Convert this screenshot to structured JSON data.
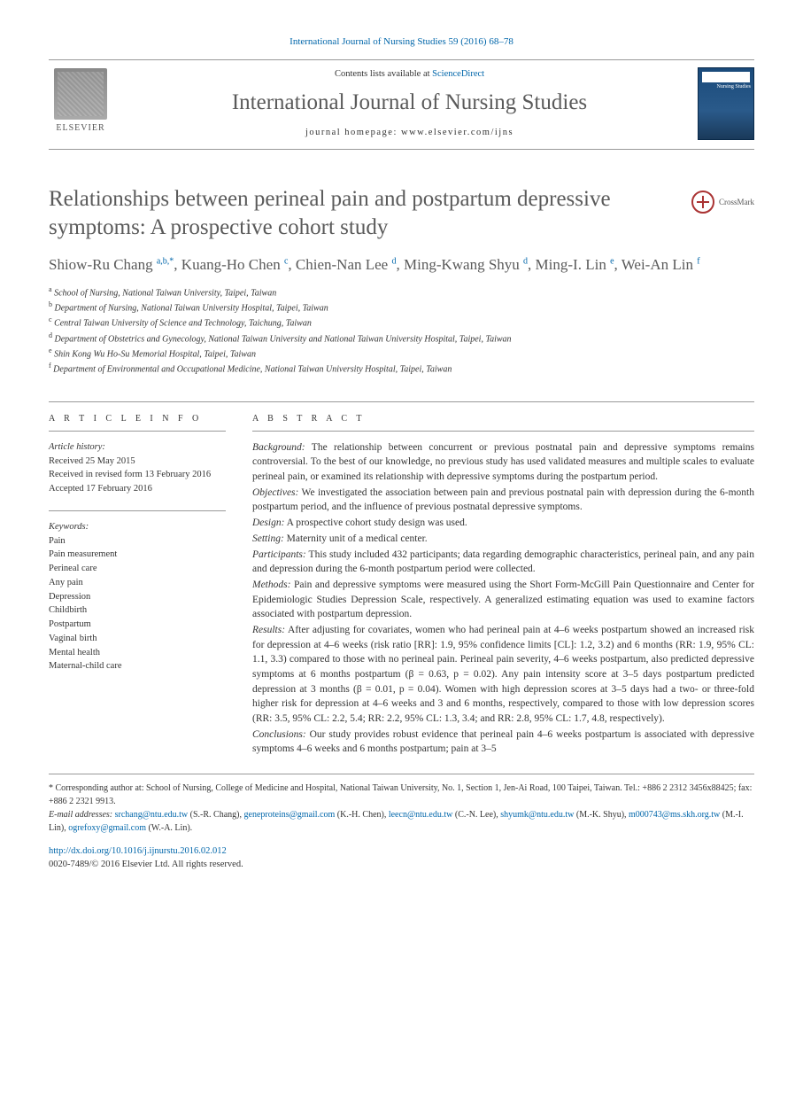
{
  "header": {
    "citation": "International Journal of Nursing Studies 59 (2016) 68–78",
    "contents_prefix": "Contents lists available at ",
    "contents_link": "ScienceDirect",
    "journal_name": "International Journal of Nursing Studies",
    "homepage_prefix": "journal homepage: ",
    "homepage_url": "www.elsevier.com/ijns",
    "publisher": "ELSEVIER",
    "cover_label": "Nursing Studies"
  },
  "crossmark": {
    "label": "CrossMark"
  },
  "article": {
    "title": "Relationships between perineal pain and postpartum depressive symptoms: A prospective cohort study",
    "authors_html": "Shiow-Ru Chang <sup>a,b,*</sup>, Kuang-Ho Chen <sup>c</sup>, Chien-Nan Lee <sup>d</sup>, Ming-Kwang Shyu <sup>d</sup>, Ming-I. Lin <sup>e</sup>, Wei-An Lin <sup>f</sup>"
  },
  "affiliations": [
    "School of Nursing, National Taiwan University, Taipei, Taiwan",
    "Department of Nursing, National Taiwan University Hospital, Taipei, Taiwan",
    "Central Taiwan University of Science and Technology, Taichung, Taiwan",
    "Department of Obstetrics and Gynecology, National Taiwan University and National Taiwan University Hospital, Taipei, Taiwan",
    "Shin Kong Wu Ho-Su Memorial Hospital, Taipei, Taiwan",
    "Department of Environmental and Occupational Medicine, National Taiwan University Hospital, Taipei, Taiwan"
  ],
  "aff_labels": [
    "a",
    "b",
    "c",
    "d",
    "e",
    "f"
  ],
  "article_info": {
    "header": "A R T I C L E   I N F O",
    "history_label": "Article history:",
    "history": [
      "Received 25 May 2015",
      "Received in revised form 13 February 2016",
      "Accepted 17 February 2016"
    ],
    "keywords_label": "Keywords:",
    "keywords": [
      "Pain",
      "Pain measurement",
      "Perineal care",
      "Any pain",
      "Depression",
      "Childbirth",
      "Postpartum",
      "Vaginal birth",
      "Mental health",
      "Maternal-child care"
    ]
  },
  "abstract": {
    "header": "A B S T R A C T",
    "sections": [
      {
        "label": "Background:",
        "text": "The relationship between concurrent or previous postnatal pain and depressive symptoms remains controversial. To the best of our knowledge, no previous study has used validated measures and multiple scales to evaluate perineal pain, or examined its relationship with depressive symptoms during the postpartum period."
      },
      {
        "label": "Objectives:",
        "text": "We investigated the association between pain and previous postnatal pain with depression during the 6-month postpartum period, and the influence of previous postnatal depressive symptoms."
      },
      {
        "label": "Design:",
        "text": "A prospective cohort study design was used."
      },
      {
        "label": "Setting:",
        "text": "Maternity unit of a medical center."
      },
      {
        "label": "Participants:",
        "text": "This study included 432 participants; data regarding demographic characteristics, perineal pain, and any pain and depression during the 6-month postpartum period were collected."
      },
      {
        "label": "Methods:",
        "text": "Pain and depressive symptoms were measured using the Short Form-McGill Pain Questionnaire and Center for Epidemiologic Studies Depression Scale, respectively. A generalized estimating equation was used to examine factors associated with postpartum depression."
      },
      {
        "label": "Results:",
        "text": "After adjusting for covariates, women who had perineal pain at 4–6 weeks postpartum showed an increased risk for depression at 4–6 weeks (risk ratio [RR]: 1.9, 95% confidence limits [CL]: 1.2, 3.2) and 6 months (RR: 1.9, 95% CL: 1.1, 3.3) compared to those with no perineal pain. Perineal pain severity, 4–6 weeks postpartum, also predicted depressive symptoms at 6 months postpartum (β = 0.63, p = 0.02). Any pain intensity score at 3–5 days postpartum predicted depression at 3 months (β = 0.01, p = 0.04). Women with high depression scores at 3–5 days had a two- or three-fold higher risk for depression at 4–6 weeks and 3 and 6 months, respectively, compared to those with low depression scores (RR: 3.5, 95% CL: 2.2, 5.4; RR: 2.2, 95% CL: 1.3, 3.4; and RR: 2.8, 95% CL: 1.7, 4.8, respectively)."
      },
      {
        "label": "Conclusions:",
        "text": "Our study provides robust evidence that perineal pain 4–6 weeks postpartum is associated with depressive symptoms 4–6 weeks and 6 months postpartum; pain at 3–5"
      }
    ]
  },
  "footer": {
    "corresponding_label": "* Corresponding author at: ",
    "corresponding": "School of Nursing, College of Medicine and Hospital, National Taiwan University, No. 1, Section 1, Jen-Ai Road, 100 Taipei, Taiwan. Tel.: +886 2 2312 3456x88425; fax: +886 2 2321 9913.",
    "emails_label": "E-mail addresses: ",
    "emails": [
      {
        "addr": "srchang@ntu.edu.tw",
        "who": "(S.-R. Chang)"
      },
      {
        "addr": "geneproteins@gmail.com",
        "who": "(K.-H. Chen)"
      },
      {
        "addr": "leecn@ntu.edu.tw",
        "who": "(C.-N. Lee)"
      },
      {
        "addr": "shyumk@ntu.edu.tw",
        "who": "(M.-K. Shyu)"
      },
      {
        "addr": "m000743@ms.skh.org.tw",
        "who": "(M.-I. Lin)"
      },
      {
        "addr": "ogrefoxy@gmail.com",
        "who": "(W.-A. Lin)"
      }
    ],
    "doi": "http://dx.doi.org/10.1016/j.ijnurstu.2016.02.012",
    "issn_copyright": "0020-7489/© 2016 Elsevier Ltd. All rights reserved."
  }
}
